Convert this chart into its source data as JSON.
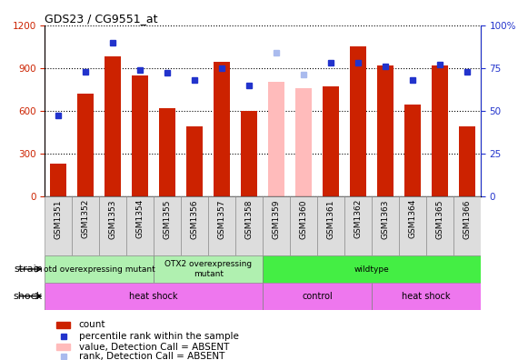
{
  "title": "GDS23 / CG9551_at",
  "samples": [
    "GSM1351",
    "GSM1352",
    "GSM1353",
    "GSM1354",
    "GSM1355",
    "GSM1356",
    "GSM1357",
    "GSM1358",
    "GSM1359",
    "GSM1360",
    "GSM1361",
    "GSM1362",
    "GSM1363",
    "GSM1364",
    "GSM1365",
    "GSM1366"
  ],
  "counts": [
    230,
    720,
    980,
    850,
    620,
    490,
    940,
    600,
    null,
    null,
    770,
    1050,
    920,
    640,
    920,
    490
  ],
  "counts_absent": [
    null,
    null,
    null,
    null,
    null,
    null,
    null,
    null,
    800,
    760,
    null,
    null,
    null,
    null,
    null,
    null
  ],
  "percentile": [
    47,
    73,
    90,
    74,
    72,
    68,
    75,
    65,
    null,
    null,
    78,
    78,
    76,
    68,
    77,
    73
  ],
  "percentile_absent": [
    null,
    null,
    null,
    null,
    null,
    null,
    null,
    null,
    84,
    71,
    null,
    null,
    null,
    null,
    null,
    null
  ],
  "ylim_left": [
    0,
    1200
  ],
  "ylim_right": [
    0,
    100
  ],
  "yticks_left": [
    0,
    300,
    600,
    900,
    1200
  ],
  "yticks_right": [
    0,
    25,
    50,
    75,
    100
  ],
  "strain_groups": [
    {
      "label": "otd overexpressing mutant",
      "start": 0,
      "end": 4,
      "color": "#b0f0b0"
    },
    {
      "label": "OTX2 overexpressing\nmutant",
      "start": 4,
      "end": 8,
      "color": "#b0f0b0"
    },
    {
      "label": "wildtype",
      "start": 8,
      "end": 16,
      "color": "#44ee44"
    }
  ],
  "shock_groups": [
    {
      "label": "heat shock",
      "start": 0,
      "end": 8,
      "color": "#ee77ee"
    },
    {
      "label": "control",
      "start": 8,
      "end": 12,
      "color": "#ee77ee"
    },
    {
      "label": "heat shock",
      "start": 12,
      "end": 16,
      "color": "#ee77ee"
    }
  ],
  "bar_color": "#cc2200",
  "bar_absent_color": "#ffbbbb",
  "dot_color": "#2233cc",
  "dot_absent_color": "#aabbee",
  "left_axis_color": "#cc2200",
  "right_axis_color": "#2233cc",
  "xtick_bg": "#dddddd"
}
